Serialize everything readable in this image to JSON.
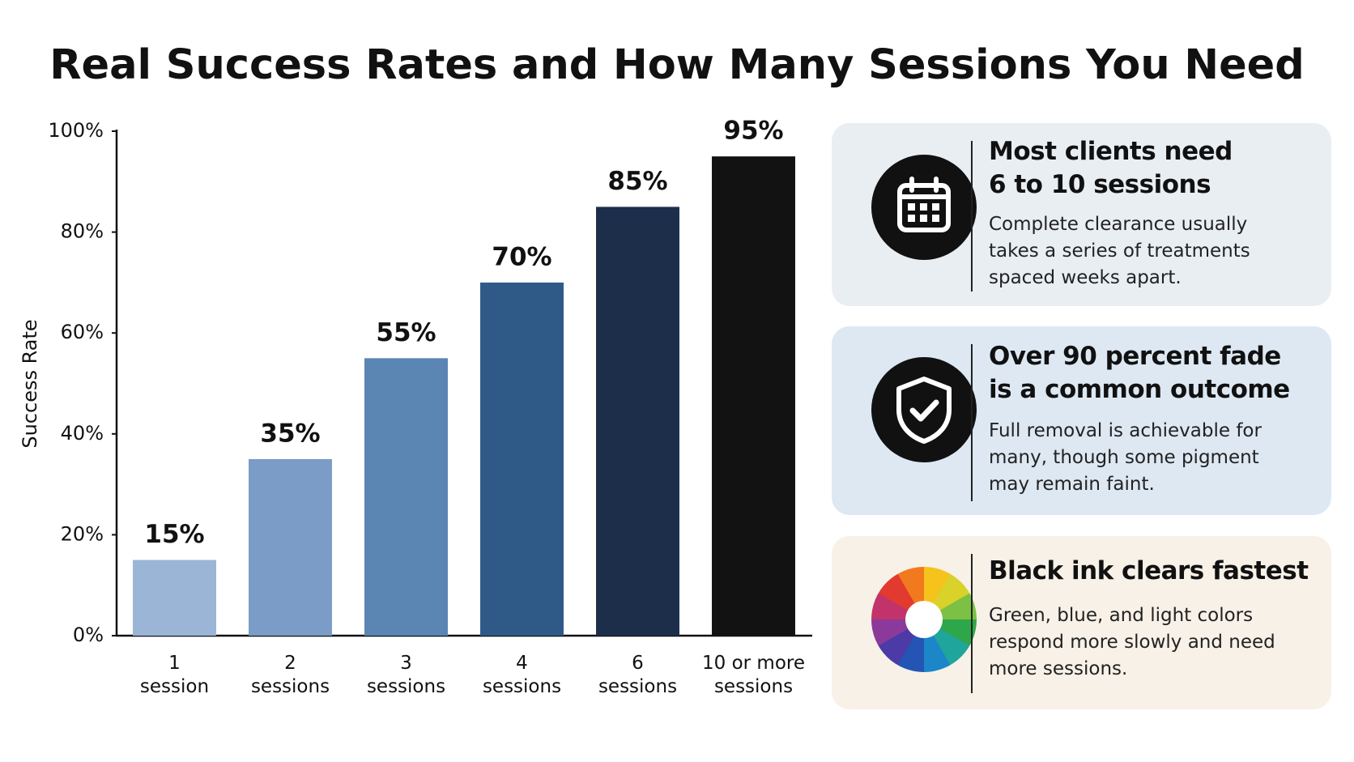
{
  "chart_data": {
    "type": "bar",
    "title": "Real Success Rates and How Many Sessions You Need",
    "y_label": "Success Rate",
    "categories": [
      "1 session",
      "2 sessions",
      "3 sessions",
      "4 sessions",
      "6 sessions",
      "10 or more sessions"
    ],
    "values": [
      15,
      35,
      55,
      70,
      85,
      95
    ],
    "value_labels": [
      "15%",
      "35%",
      "55%",
      "70%",
      "85%",
      "95%"
    ],
    "colors": [
      "#9ab5d6",
      "#7a9cc6",
      "#5b85b3",
      "#2f5a88",
      "#1c2e4a",
      "#121212"
    ],
    "ylim": [
      0,
      100
    ],
    "yticks": [
      {
        "value": 0,
        "label": "0%"
      },
      {
        "value": 20,
        "label": "20%"
      },
      {
        "value": 40,
        "label": "40%"
      },
      {
        "value": 60,
        "label": "60%"
      },
      {
        "value": 80,
        "label": "80%"
      },
      {
        "value": 100,
        "label": "100%"
      }
    ],
    "grid": false
  },
  "cards": [
    {
      "title_lines": [
        "Most clients need",
        "6 to 10 sessions"
      ],
      "body": "Complete clearance usually takes a series of treatments spaced weeks apart."
    },
    {
      "title_lines": [
        "Over 90 percent fade",
        "is a common outcome"
      ],
      "body": "Full removal is achievable for many, though some pigment may remain faint."
    },
    {
      "title_lines": [
        "Black ink clears fastest"
      ],
      "body": "Green, blue, and light colors respond more slowly and need more sessions."
    }
  ]
}
